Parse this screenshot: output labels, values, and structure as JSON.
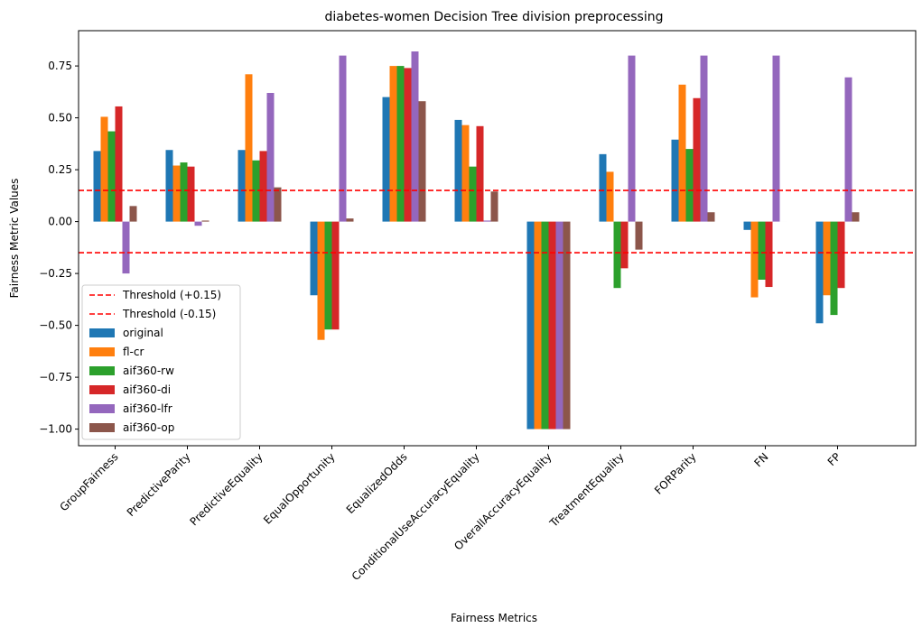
{
  "chart_data": {
    "type": "bar",
    "title": "diabetes-women Decision Tree division preprocessing",
    "xlabel": "Fairness Metrics",
    "ylabel": "Fairness Metric Values",
    "ylim": [
      -1.08,
      0.92
    ],
    "yticks": [
      -1.0,
      -0.75,
      -0.5,
      -0.25,
      0.0,
      0.25,
      0.5,
      0.75
    ],
    "ytick_labels": [
      "−1.00",
      "−0.75",
      "−0.50",
      "−0.25",
      "0.00",
      "0.25",
      "0.50",
      "0.75"
    ],
    "categories": [
      "GroupFairness",
      "PredictiveParity",
      "PredictiveEquality",
      "EqualOpportunity",
      "EqualizedOdds",
      "ConditionalUseAccuracyEquality",
      "OverallAccuracyEquality",
      "TreatmentEquality",
      "FORParity",
      "FN",
      "FP"
    ],
    "series": [
      {
        "name": "original",
        "color": "#1f77b4",
        "values": [
          0.34,
          0.345,
          0.345,
          -0.355,
          0.6,
          0.49,
          -1.0,
          0.325,
          0.395,
          -0.04,
          -0.49
        ]
      },
      {
        "name": "fl-cr",
        "color": "#ff7f0e",
        "values": [
          0.505,
          0.27,
          0.71,
          -0.57,
          0.75,
          0.465,
          -1.0,
          0.24,
          0.66,
          -0.365,
          -0.355
        ]
      },
      {
        "name": "aif360-rw",
        "color": "#2ca02c",
        "values": [
          0.435,
          0.285,
          0.295,
          -0.52,
          0.75,
          0.265,
          -1.0,
          -0.32,
          0.35,
          -0.28,
          -0.45
        ]
      },
      {
        "name": "aif360-di",
        "color": "#d62728",
        "values": [
          0.555,
          0.265,
          0.34,
          -0.52,
          0.74,
          0.46,
          -1.0,
          -0.225,
          0.595,
          -0.315,
          -0.32
        ]
      },
      {
        "name": "aif360-lfr",
        "color": "#9467bd",
        "values": [
          -0.25,
          -0.02,
          0.62,
          0.8,
          0.82,
          0.005,
          -1.0,
          0.8,
          0.8,
          0.8,
          0.695
        ]
      },
      {
        "name": "aif360-op",
        "color": "#8c564b",
        "values": [
          0.075,
          0.005,
          0.165,
          0.015,
          0.58,
          0.145,
          -1.0,
          -0.135,
          0.045,
          0.0,
          0.045
        ]
      }
    ],
    "thresholds": [
      {
        "name": "Threshold (+0.15)",
        "value": 0.15,
        "color": "#ff0000"
      },
      {
        "name": "Threshold (-0.15)",
        "value": -0.15,
        "color": "#ff0000"
      }
    ],
    "legend": "lower-left",
    "grid": false
  }
}
